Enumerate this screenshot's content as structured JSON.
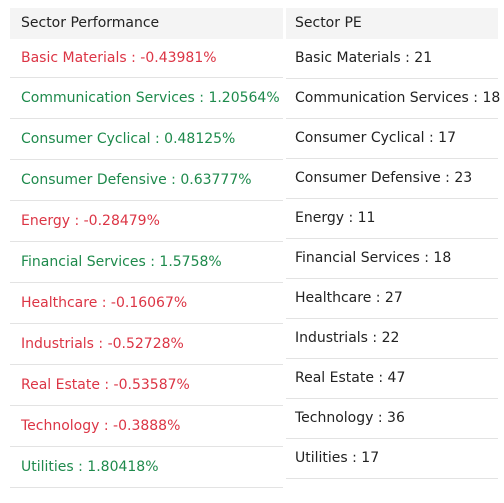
{
  "performance": {
    "header": "Sector Performance",
    "rows": [
      {
        "text": "Basic Materials : -0.43981%",
        "status": "negative"
      },
      {
        "text": "Communication Services : 1.20564%",
        "status": "positive"
      },
      {
        "text": "Consumer Cyclical : 0.48125%",
        "status": "positive"
      },
      {
        "text": "Consumer Defensive : 0.63777%",
        "status": "positive"
      },
      {
        "text": "Energy : -0.28479%",
        "status": "negative"
      },
      {
        "text": "Financial Services : 1.5758%",
        "status": "positive"
      },
      {
        "text": "Healthcare : -0.16067%",
        "status": "negative"
      },
      {
        "text": "Industrials : -0.52728%",
        "status": "negative"
      },
      {
        "text": "Real Estate : -0.53587%",
        "status": "negative"
      },
      {
        "text": "Technology : -0.3888%",
        "status": "negative"
      },
      {
        "text": "Utilities : 1.80418%",
        "status": "positive"
      }
    ]
  },
  "pe": {
    "header": "Sector PE",
    "rows": [
      "Basic Materials : 21",
      "Communication Services : 18",
      "Consumer Cyclical : 17",
      "Consumer Defensive : 23",
      "Energy : 11",
      "Financial Services : 18",
      "Healthcare : 27",
      "Industrials : 22",
      "Real Estate : 47",
      "Technology : 36",
      "Utilities : 17"
    ]
  },
  "colors": {
    "positive": "#1e8a4c",
    "negative": "#dc3545"
  }
}
